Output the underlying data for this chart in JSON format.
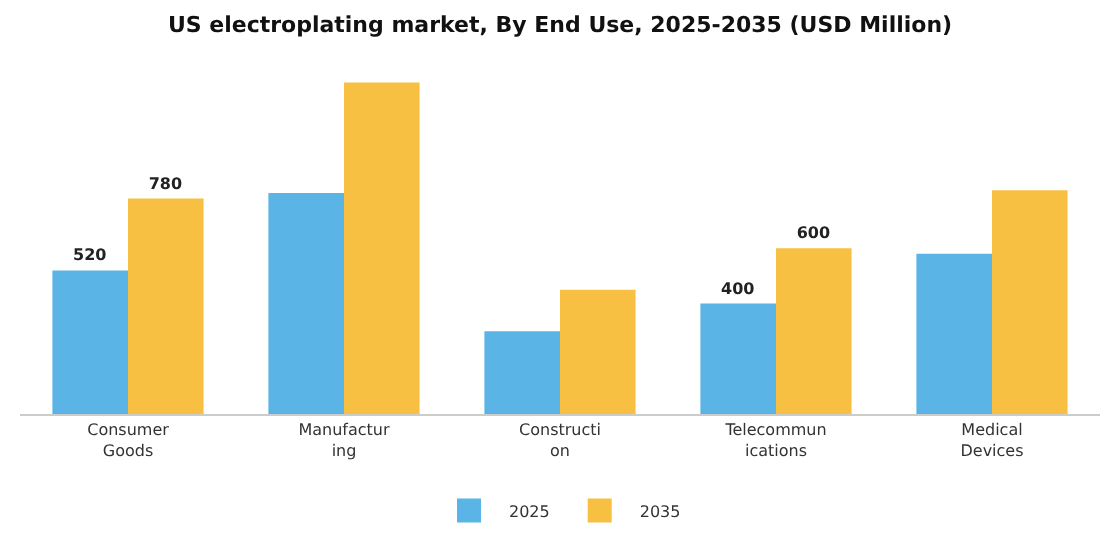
{
  "chart_data": {
    "type": "bar",
    "title": "US electroplating market, By End Use, 2025-2035 (USD Million)",
    "categories": [
      "Consumer\nGoods",
      "Manufactur\ning",
      "Constructi\non",
      "Telecommun\nications",
      "Medical\nDevices"
    ],
    "series": [
      {
        "name": "2025",
        "color": "#5ab4e6",
        "values": [
          520,
          800,
          300,
          400,
          580
        ],
        "value_labels": [
          "520",
          null,
          null,
          "400",
          null
        ]
      },
      {
        "name": "2035",
        "color": "#f8c043",
        "values": [
          780,
          1200,
          450,
          600,
          810
        ],
        "value_labels": [
          "780",
          null,
          null,
          "600",
          null
        ]
      }
    ],
    "legend": "bottom",
    "grid": false
  }
}
